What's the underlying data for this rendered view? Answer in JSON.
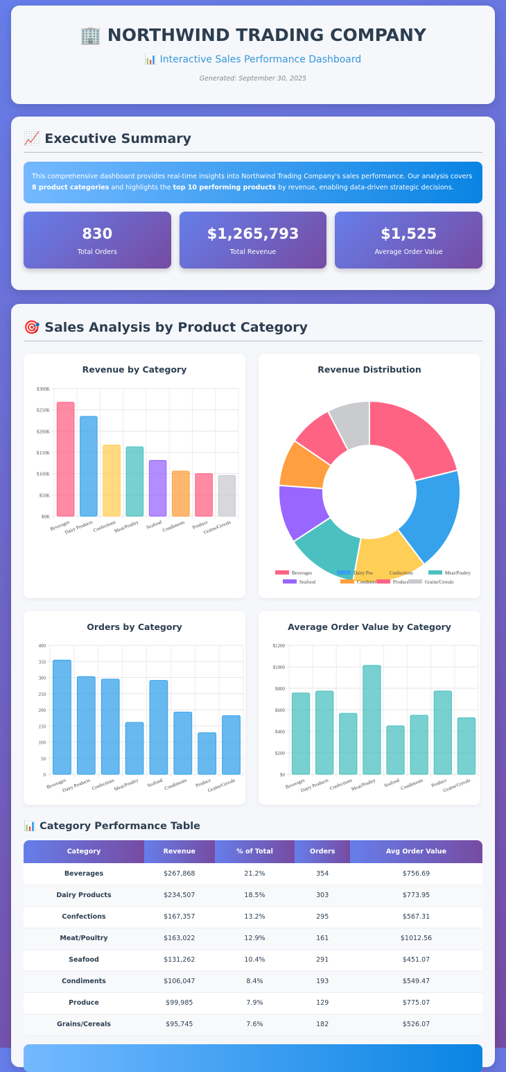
{
  "header": {
    "title": "🏢 NORTHWIND TRADING COMPANY",
    "subtitle": "📊 Interactive Sales Performance Dashboard",
    "generated": "Generated: September 30, 2025"
  },
  "summary": {
    "title": "📈 Executive Summary",
    "intro_pre": "This comprehensive dashboard provides real-time insights into Northwind Trading Company's sales performance. Our analysis covers ",
    "intro_b1": "8 product categories",
    "intro_mid": " and highlights the ",
    "intro_b2": "top 10 performing products",
    "intro_post": " by revenue, enabling data-driven strategic decisions.",
    "kpis": [
      {
        "value": "830",
        "label": "Total Orders"
      },
      {
        "value": "$1,265,793",
        "label": "Total Revenue"
      },
      {
        "value": "$1,525",
        "label": "Average Order Value"
      }
    ]
  },
  "sales": {
    "title": "🎯 Sales Analysis by Product Category",
    "table_title": "📊 Category Performance Table"
  },
  "colors": [
    "#ff6384",
    "#36a2eb",
    "#ffce56",
    "#4bc0c0",
    "#9966ff",
    "#ff9f40",
    "#ff6384",
    "#c9cbcf"
  ],
  "chart_data": [
    {
      "type": "bar",
      "title": "Revenue by Category",
      "categories": [
        "Beverages",
        "Dairy Products",
        "Confections",
        "Meat/Poultry",
        "Seafood",
        "Condiments",
        "Produce",
        "Grains/Cereals"
      ],
      "values": [
        267868,
        234507,
        167357,
        163022,
        131262,
        106047,
        99985,
        95745
      ],
      "ylim": [
        0,
        300000
      ],
      "yticks": [
        "$0K",
        "$50K",
        "$100K",
        "$150K",
        "$200K",
        "$250K",
        "$300K"
      ],
      "grid": true
    },
    {
      "type": "pie",
      "title": "Revenue Distribution",
      "categories": [
        "Beverages",
        "Dairy Products",
        "Confections",
        "Meat/Poultry",
        "Seafood",
        "Condiments",
        "Produce",
        "Grains/Cereals"
      ],
      "values": [
        267868,
        234507,
        167357,
        163022,
        131262,
        106047,
        99985,
        95745
      ],
      "legend": "bottom",
      "donut": true
    },
    {
      "type": "bar",
      "title": "Orders by Category",
      "categories": [
        "Beverages",
        "Dairy Products",
        "Confections",
        "Meat/Poultry",
        "Seafood",
        "Condiments",
        "Produce",
        "Grains/Cereals"
      ],
      "values": [
        354,
        303,
        295,
        161,
        291,
        193,
        129,
        182
      ],
      "ylim": [
        0,
        400
      ],
      "yticks": [
        "0",
        "50",
        "100",
        "150",
        "200",
        "250",
        "300",
        "350",
        "400"
      ],
      "color": "#36a2eb",
      "grid": true
    },
    {
      "type": "bar",
      "title": "Average Order Value by Category",
      "categories": [
        "Beverages",
        "Dairy Products",
        "Confections",
        "Meat/Poultry",
        "Seafood",
        "Condiments",
        "Produce",
        "Grains/Cereals"
      ],
      "values": [
        756.69,
        773.95,
        567.31,
        1012.56,
        451.07,
        549.47,
        775.07,
        526.07
      ],
      "ylim": [
        0,
        1200
      ],
      "yticks": [
        "$0",
        "$200",
        "$400",
        "$600",
        "$800",
        "$1000",
        "$1200"
      ],
      "color": "#4bc0c0",
      "grid": true
    }
  ],
  "table": {
    "headers": [
      "Category",
      "Revenue",
      "% of Total",
      "Orders",
      "Avg Order Value"
    ],
    "rows": [
      [
        "Beverages",
        "$267,868",
        "21.2%",
        "354",
        "$756.69"
      ],
      [
        "Dairy Products",
        "$234,507",
        "18.5%",
        "303",
        "$773.95"
      ],
      [
        "Confections",
        "$167,357",
        "13.2%",
        "295",
        "$567.31"
      ],
      [
        "Meat/Poultry",
        "$163,022",
        "12.9%",
        "161",
        "$1012.56"
      ],
      [
        "Seafood",
        "$131,262",
        "10.4%",
        "291",
        "$451.07"
      ],
      [
        "Condiments",
        "$106,047",
        "8.4%",
        "193",
        "$549.47"
      ],
      [
        "Produce",
        "$99,985",
        "7.9%",
        "129",
        "$775.07"
      ],
      [
        "Grains/Cereals",
        "$95,745",
        "7.6%",
        "182",
        "$526.07"
      ]
    ]
  }
}
